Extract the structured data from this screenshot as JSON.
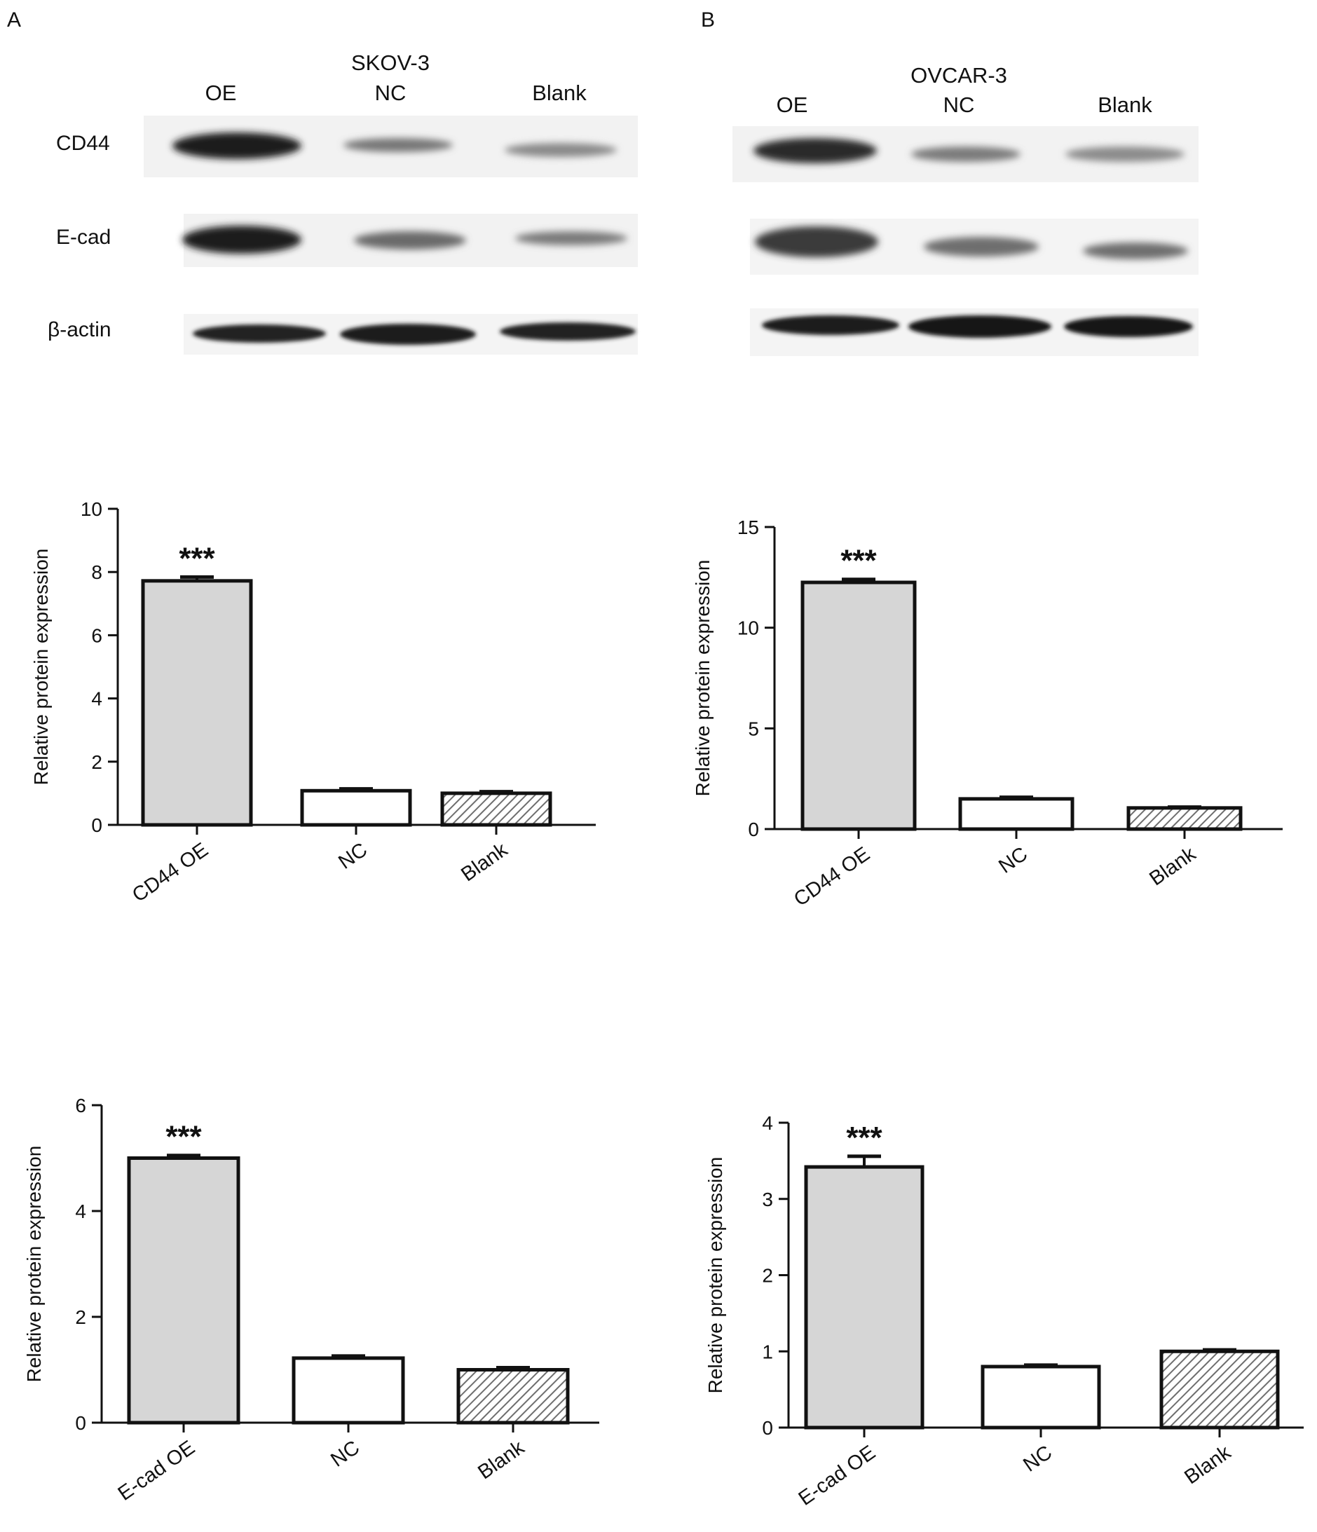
{
  "panels": [
    {
      "letter": "A",
      "cell_line": "SKOV-3",
      "lanes": [
        "OE",
        "NC",
        "Blank"
      ],
      "rows": [
        "CD44",
        "E-cad",
        "β-actin"
      ],
      "blot_intensity": {
        "CD44": [
          0.95,
          0.45,
          0.4
        ],
        "E-cad": [
          0.95,
          0.55,
          0.5
        ],
        "β-actin": [
          0.9,
          0.92,
          0.9
        ]
      }
    },
    {
      "letter": "B",
      "cell_line": "OVCAR-3",
      "lanes": [
        "OE",
        "NC",
        "Blank"
      ],
      "rows": [
        "",
        "",
        ""
      ],
      "blot_intensity": {
        "row1": [
          0.85,
          0.45,
          0.42
        ],
        "row2": [
          0.75,
          0.55,
          0.55
        ],
        "row3": [
          0.95,
          0.95,
          0.95
        ]
      }
    }
  ],
  "colors": {
    "oe_fill": "#d6d6d6",
    "nc_fill": "#ffffff",
    "blank_hatch": "#777777",
    "ink": "#111111"
  },
  "chart_data": [
    {
      "type": "bar",
      "panel": "A",
      "ylabel": "Relative protein expression",
      "categories": [
        "CD44 OE",
        "NC",
        "Blank"
      ],
      "values": [
        7.72,
        1.08,
        1.0
      ],
      "errors": [
        0.12,
        0.06,
        0.05
      ],
      "ylim": [
        0,
        10
      ],
      "yticks": [
        0,
        2,
        4,
        6,
        8,
        10
      ],
      "significance": [
        "***",
        "",
        ""
      ]
    },
    {
      "type": "bar",
      "panel": "B",
      "ylabel": "Relative protein expression",
      "categories": [
        "CD44 OE",
        "NC",
        "Blank"
      ],
      "values": [
        12.25,
        1.5,
        1.05
      ],
      "errors": [
        0.15,
        0.08,
        0.04
      ],
      "ylim": [
        0,
        15
      ],
      "yticks": [
        0,
        5,
        10,
        15
      ],
      "significance": [
        "***",
        "",
        ""
      ]
    },
    {
      "type": "bar",
      "panel": "A",
      "ylabel": "Relative protein expression",
      "categories": [
        "E-cad OE",
        "NC",
        "Blank"
      ],
      "values": [
        5.0,
        1.22,
        1.0
      ],
      "errors": [
        0.05,
        0.04,
        0.04
      ],
      "ylim": [
        0,
        6
      ],
      "yticks": [
        0,
        2,
        4,
        6
      ],
      "significance": [
        "***",
        "",
        ""
      ]
    },
    {
      "type": "bar",
      "panel": "B",
      "ylabel": "Relative protein expression",
      "categories": [
        "E-cad OE",
        "NC",
        "Blank"
      ],
      "values": [
        3.42,
        0.8,
        1.0
      ],
      "errors": [
        0.14,
        0.02,
        0.02
      ],
      "ylim": [
        0,
        4
      ],
      "yticks": [
        0,
        1,
        2,
        3,
        4
      ],
      "significance": [
        "***",
        "",
        ""
      ]
    }
  ]
}
